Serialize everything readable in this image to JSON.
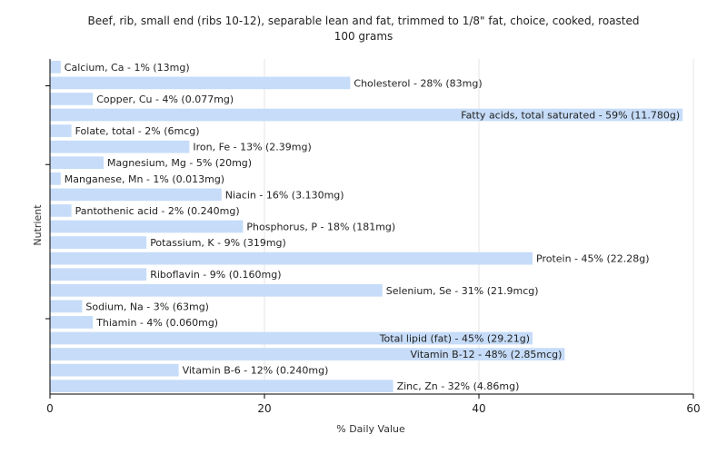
{
  "chart_data": {
    "type": "bar",
    "orientation": "horizontal",
    "title": "Beef, rib, small end (ribs 10-12), separable lean and fat, trimmed to 1/8\" fat, choice, cooked, roasted",
    "subtitle": "100 grams",
    "xlabel": "% Daily Value",
    "ylabel": "Nutrient",
    "xlim": [
      0,
      60
    ],
    "xticks": [
      0,
      20,
      40,
      60
    ],
    "grid": true,
    "bar_color": "#c6dcf8",
    "categories": [
      "Calcium, Ca",
      "Cholesterol",
      "Copper, Cu",
      "Fatty acids, total saturated",
      "Folate, total",
      "Iron, Fe",
      "Magnesium, Mg",
      "Manganese, Mn",
      "Niacin",
      "Pantothenic acid",
      "Phosphorus, P",
      "Potassium, K",
      "Protein",
      "Riboflavin",
      "Selenium, Se",
      "Sodium, Na",
      "Thiamin",
      "Total lipid (fat)",
      "Vitamin B-12",
      "Vitamin B-6",
      "Zinc, Zn"
    ],
    "values": [
      1,
      28,
      4,
      59,
      2,
      13,
      5,
      1,
      16,
      2,
      18,
      9,
      45,
      9,
      31,
      3,
      4,
      45,
      48,
      12,
      32
    ],
    "labels": [
      "Calcium, Ca - 1% (13mg)",
      "Cholesterol - 28% (83mg)",
      "Copper, Cu - 4% (0.077mg)",
      "Fatty acids, total saturated - 59% (11.780g)",
      "Folate, total - 2% (6mcg)",
      "Iron, Fe - 13% (2.39mg)",
      "Magnesium, Mg - 5% (20mg)",
      "Manganese, Mn - 1% (0.013mg)",
      "Niacin - 16% (3.130mg)",
      "Pantothenic acid - 2% (0.240mg)",
      "Phosphorus, P - 18% (181mg)",
      "Potassium, K - 9% (319mg)",
      "Protein - 45% (22.28g)",
      "Riboflavin - 9% (0.160mg)",
      "Selenium, Se - 31% (21.9mcg)",
      "Sodium, Na - 3% (63mg)",
      "Thiamin - 4% (0.060mg)",
      "Total lipid (fat) - 45% (29.21g)",
      "Vitamin B-12 - 48% (2.85mcg)",
      "Vitamin B-6 - 12% (0.240mg)",
      "Zinc, Zn - 32% (4.86mg)"
    ]
  }
}
